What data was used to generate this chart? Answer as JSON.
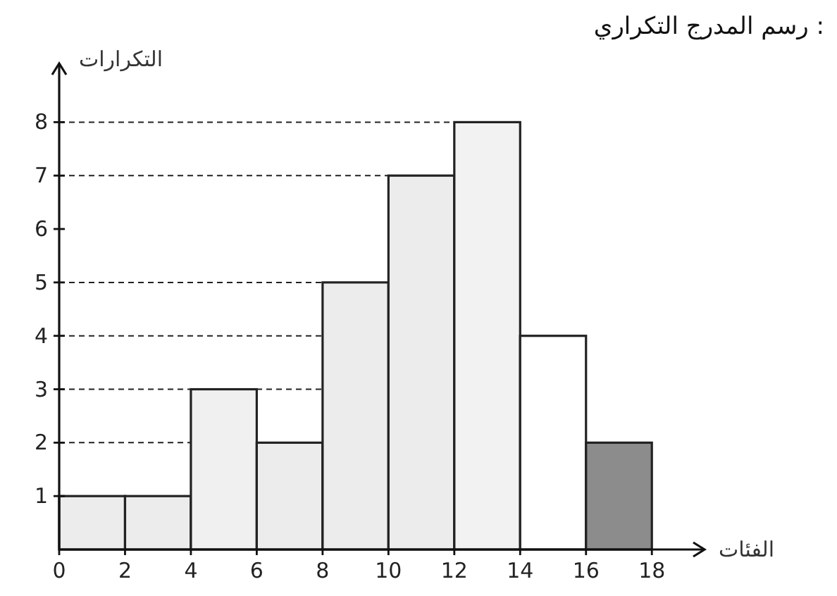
{
  "chart_data": {
    "type": "histogram",
    "title": "رسم المدرج التكراري :",
    "xlabel": "الفئات",
    "ylabel": "التكرارات",
    "bins": [
      0,
      2,
      4,
      6,
      8,
      10,
      12,
      14,
      16,
      18
    ],
    "values": [
      1,
      1,
      3,
      2,
      5,
      7,
      8,
      4,
      2
    ],
    "colors": [
      "#ececec",
      "#ececec",
      "#f0f0f0",
      "#ececec",
      "#ececec",
      "#ececec",
      "#f2f2f2",
      "#ffffff",
      "#8c8c8c"
    ],
    "xlim": [
      0,
      19.6
    ],
    "ylim": [
      0,
      9.1
    ],
    "xticks": [
      0,
      2,
      4,
      6,
      8,
      10,
      12,
      14,
      16,
      18
    ],
    "yticks": [
      1,
      2,
      3,
      4,
      5,
      6,
      7,
      8
    ],
    "ref_lines": [
      {
        "axis": "y",
        "value": 2,
        "line_style": "dashed"
      },
      {
        "axis": "y",
        "value": 3,
        "line_style": "dashed"
      },
      {
        "axis": "y",
        "value": 4,
        "line_style": "dashed"
      },
      {
        "axis": "y",
        "value": 5,
        "line_style": "dashed"
      },
      {
        "axis": "y",
        "value": 7,
        "line_style": "dashed"
      },
      {
        "axis": "y",
        "value": 8,
        "line_style": "dashed"
      }
    ]
  }
}
